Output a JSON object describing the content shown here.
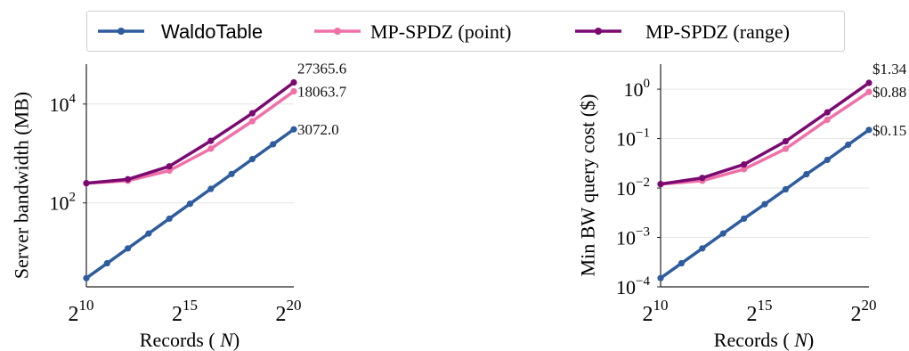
{
  "legend": {
    "items": [
      {
        "label": "WaldoTable",
        "color": "#2E5C9E"
      },
      {
        "label": "MP-SPDZ (point)",
        "color": "#F070A8"
      },
      {
        "label": "MP-SPDZ (range)",
        "color": "#7A0A72"
      }
    ]
  },
  "chart_data": [
    {
      "type": "line",
      "title": "",
      "xlabel": "Records (N)",
      "ylabel": "Server bandwidth (MB)",
      "x_scale": "log2",
      "y_scale": "log10",
      "xlim": [
        1024,
        1048576
      ],
      "ylim": [
        2,
        50000
      ],
      "x_ticks": [
        {
          "value": 1024,
          "base": "2",
          "exp": "10"
        },
        {
          "value": 32768,
          "base": "2",
          "exp": "15"
        },
        {
          "value": 1048576,
          "base": "2",
          "exp": "20"
        }
      ],
      "y_ticks": [
        {
          "value": 100,
          "base": "10",
          "exp": "2"
        },
        {
          "value": 10000,
          "base": "10",
          "exp": "4"
        }
      ],
      "grid": "horizontal",
      "series": [
        {
          "name": "WaldoTable",
          "color": "#2E5C9E",
          "x": [
            1024,
            2048,
            4096,
            8192,
            16384,
            32768,
            65536,
            131072,
            262144,
            524288,
            1048576
          ],
          "y": [
            3.0,
            6.0,
            12.0,
            24.0,
            48.0,
            96.0,
            192.0,
            384.0,
            768.0,
            1536.0,
            3072.0
          ]
        },
        {
          "name": "MP-SPDZ (point)",
          "color": "#F070A8",
          "x": [
            1024,
            4096,
            16384,
            65536,
            262144,
            1048576
          ],
          "y": [
            250,
            280,
            450,
            1250,
            4500,
            18063.7
          ]
        },
        {
          "name": "MP-SPDZ (range)",
          "color": "#7A0A72",
          "x": [
            1024,
            4096,
            16384,
            65536,
            262144,
            1048576
          ],
          "y": [
            250,
            300,
            550,
            1800,
            6500,
            27365.6
          ]
        }
      ],
      "end_labels": [
        "27365.6",
        "18063.7",
        "3072.0"
      ]
    },
    {
      "type": "line",
      "title": "",
      "xlabel": "Records (N)",
      "ylabel": "Min BW query cost ($)",
      "x_scale": "log2",
      "y_scale": "log10",
      "xlim": [
        1024,
        1048576
      ],
      "ylim": [
        0.0001,
        2.5
      ],
      "x_ticks": [
        {
          "value": 1024,
          "base": "2",
          "exp": "10"
        },
        {
          "value": 32768,
          "base": "2",
          "exp": "15"
        },
        {
          "value": 1048576,
          "base": "2",
          "exp": "20"
        }
      ],
      "y_ticks": [
        {
          "value": 0.0001,
          "base": "10",
          "exp": "−4"
        },
        {
          "value": 0.001,
          "base": "10",
          "exp": "−3"
        },
        {
          "value": 0.01,
          "base": "10",
          "exp": "−2"
        },
        {
          "value": 0.1,
          "base": "10",
          "exp": "−1"
        },
        {
          "value": 1,
          "base": "10",
          "exp": "0"
        }
      ],
      "grid": "horizontal",
      "series": [
        {
          "name": "WaldoTable",
          "color": "#2E5C9E",
          "x": [
            1024,
            2048,
            4096,
            8192,
            16384,
            32768,
            65536,
            131072,
            262144,
            524288,
            1048576
          ],
          "y": [
            0.00015,
            0.0003,
            0.0006,
            0.0012,
            0.0024,
            0.0047,
            0.0094,
            0.019,
            0.037,
            0.075,
            0.15
          ]
        },
        {
          "name": "MP-SPDZ (point)",
          "color": "#F070A8",
          "x": [
            1024,
            4096,
            16384,
            65536,
            262144,
            1048576
          ],
          "y": [
            0.012,
            0.014,
            0.024,
            0.062,
            0.24,
            0.88
          ]
        },
        {
          "name": "MP-SPDZ (range)",
          "color": "#7A0A72",
          "x": [
            1024,
            4096,
            16384,
            65536,
            262144,
            1048576
          ],
          "y": [
            0.012,
            0.016,
            0.03,
            0.088,
            0.34,
            1.34
          ]
        }
      ],
      "end_labels": [
        "$1.34",
        "$0.88",
        "$0.15"
      ]
    }
  ]
}
